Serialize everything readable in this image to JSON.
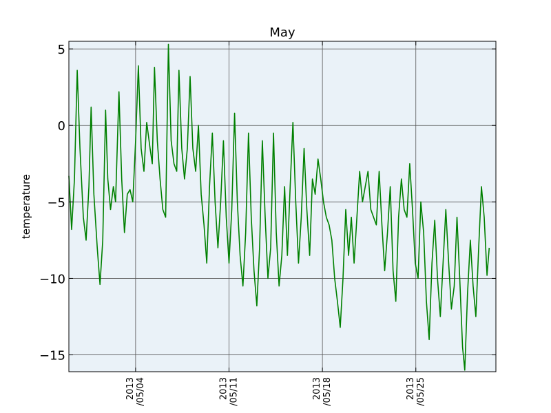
{
  "chart_data": {
    "type": "line",
    "title": "May",
    "xlabel": "",
    "ylabel": "temperature",
    "ylim": [
      -16.1,
      5.5
    ],
    "y_ticks": [
      5,
      0,
      -5,
      -10,
      -15
    ],
    "y_tick_labels": [
      "5",
      "0",
      "−5",
      "−10",
      "−15"
    ],
    "xlim": [
      "2013-04-29",
      "2013-05-31"
    ],
    "x_ticks": [
      "2013-05-04",
      "2013-05-11",
      "2013-05-18",
      "2013-05-25"
    ],
    "x_tick_labels": [
      {
        "year": "2013",
        "month_day": "/05/04"
      },
      {
        "year": "2013",
        "month_day": "/05/11"
      },
      {
        "year": "2013",
        "month_day": "/05/18"
      },
      {
        "year": "2013",
        "month_day": "/05/25"
      }
    ],
    "grid": true,
    "colors": {
      "line": "#008000",
      "plot_background": "#eaf2f8",
      "grid": "#555555"
    },
    "series": [
      {
        "values": [
          {
            "x": "2013-04-29 00:00",
            "y": -3.3
          },
          {
            "x": "2013-04-29 05:00",
            "y": -6.8
          },
          {
            "x": "2013-04-29 10:00",
            "y": -3.5
          },
          {
            "x": "2013-04-29 15:00",
            "y": 3.6
          },
          {
            "x": "2013-04-29 20:00",
            "y": -1.5
          },
          {
            "x": "2013-04-30 02:00",
            "y": -6.0
          },
          {
            "x": "2013-04-30 07:00",
            "y": -7.5
          },
          {
            "x": "2013-04-30 12:00",
            "y": -4.0
          },
          {
            "x": "2013-04-30 16:00",
            "y": 1.2
          },
          {
            "x": "2013-04-30 21:00",
            "y": -4.5
          },
          {
            "x": "2013-05-01 03:00",
            "y": -8.0
          },
          {
            "x": "2013-05-01 08:00",
            "y": -10.4
          },
          {
            "x": "2013-05-01 13:00",
            "y": -7.5
          },
          {
            "x": "2013-05-01 18:00",
            "y": 1.0
          },
          {
            "x": "2013-05-01 22:00",
            "y": -3.5
          },
          {
            "x": "2013-05-02 03:00",
            "y": -5.5
          },
          {
            "x": "2013-05-02 08:00",
            "y": -4.0
          },
          {
            "x": "2013-05-02 12:00",
            "y": -5.0
          },
          {
            "x": "2013-05-02 18:00",
            "y": 2.2
          },
          {
            "x": "2013-05-02 23:00",
            "y": -3.5
          },
          {
            "x": "2013-05-03 04:00",
            "y": -7.0
          },
          {
            "x": "2013-05-03 09:00",
            "y": -4.5
          },
          {
            "x": "2013-05-03 14:00",
            "y": -4.2
          },
          {
            "x": "2013-05-03 19:00",
            "y": -5.0
          },
          {
            "x": "2013-05-04 00:00",
            "y": -1.0
          },
          {
            "x": "2013-05-04 05:00",
            "y": 3.9
          },
          {
            "x": "2013-05-04 10:00",
            "y": -1.5
          },
          {
            "x": "2013-05-04 15:00",
            "y": -3.0
          },
          {
            "x": "2013-05-04 20:00",
            "y": 0.2
          },
          {
            "x": "2013-05-05 02:00",
            "y": -1.5
          },
          {
            "x": "2013-05-05 06:00",
            "y": -2.5
          },
          {
            "x": "2013-05-05 10:00",
            "y": 3.8
          },
          {
            "x": "2013-05-05 15:00",
            "y": -1.0
          },
          {
            "x": "2013-05-05 20:00",
            "y": -3.5
          },
          {
            "x": "2013-05-06 01:00",
            "y": -5.5
          },
          {
            "x": "2013-05-06 06:00",
            "y": -6.0
          },
          {
            "x": "2013-05-06 11:00",
            "y": 5.3
          },
          {
            "x": "2013-05-06 16:00",
            "y": -1.0
          },
          {
            "x": "2013-05-06 21:00",
            "y": -2.5
          },
          {
            "x": "2013-05-07 02:00",
            "y": -3.0
          },
          {
            "x": "2013-05-07 06:00",
            "y": 3.6
          },
          {
            "x": "2013-05-07 11:00",
            "y": -1.5
          },
          {
            "x": "2013-05-07 16:00",
            "y": -3.5
          },
          {
            "x": "2013-05-07 21:00",
            "y": -1.5
          },
          {
            "x": "2013-05-08 02:00",
            "y": 3.2
          },
          {
            "x": "2013-05-08 07:00",
            "y": -1.5
          },
          {
            "x": "2013-05-08 12:00",
            "y": -3.0
          },
          {
            "x": "2013-05-08 17:00",
            "y": 0.0
          },
          {
            "x": "2013-05-08 22:00",
            "y": -4.5
          },
          {
            "x": "2013-05-09 03:00",
            "y": -6.5
          },
          {
            "x": "2013-05-09 08:00",
            "y": -9.0
          },
          {
            "x": "2013-05-09 13:00",
            "y": -4.0
          },
          {
            "x": "2013-05-09 18:00",
            "y": -0.5
          },
          {
            "x": "2013-05-09 23:00",
            "y": -5.0
          },
          {
            "x": "2013-05-10 04:00",
            "y": -8.0
          },
          {
            "x": "2013-05-10 09:00",
            "y": -5.0
          },
          {
            "x": "2013-05-10 14:00",
            "y": -1.0
          },
          {
            "x": "2013-05-10 19:00",
            "y": -6.0
          },
          {
            "x": "2013-05-11 00:00",
            "y": -9.0
          },
          {
            "x": "2013-05-11 05:00",
            "y": -5.5
          },
          {
            "x": "2013-05-11 10:00",
            "y": 0.8
          },
          {
            "x": "2013-05-11 15:00",
            "y": -5.0
          },
          {
            "x": "2013-05-11 20:00",
            "y": -8.5
          },
          {
            "x": "2013-05-12 01:00",
            "y": -10.5
          },
          {
            "x": "2013-05-12 06:00",
            "y": -7.0
          },
          {
            "x": "2013-05-12 11:00",
            "y": -0.5
          },
          {
            "x": "2013-05-12 16:00",
            "y": -6.0
          },
          {
            "x": "2013-05-12 21:00",
            "y": -9.5
          },
          {
            "x": "2013-05-13 02:00",
            "y": -11.8
          },
          {
            "x": "2013-05-13 07:00",
            "y": -8.0
          },
          {
            "x": "2013-05-13 12:00",
            "y": -1.0
          },
          {
            "x": "2013-05-13 17:00",
            "y": -6.0
          },
          {
            "x": "2013-05-13 22:00",
            "y": -10.0
          },
          {
            "x": "2013-05-14 03:00",
            "y": -8.0
          },
          {
            "x": "2013-05-14 08:00",
            "y": -0.5
          },
          {
            "x": "2013-05-14 13:00",
            "y": -7.0
          },
          {
            "x": "2013-05-14 18:00",
            "y": -10.5
          },
          {
            "x": "2013-05-14 23:00",
            "y": -8.5
          },
          {
            "x": "2013-05-15 04:00",
            "y": -4.0
          },
          {
            "x": "2013-05-15 09:00",
            "y": -8.5
          },
          {
            "x": "2013-05-15 14:00",
            "y": -4.0
          },
          {
            "x": "2013-05-15 19:00",
            "y": 0.2
          },
          {
            "x": "2013-05-16 00:00",
            "y": -5.0
          },
          {
            "x": "2013-05-16 05:00",
            "y": -9.0
          },
          {
            "x": "2013-05-16 10:00",
            "y": -6.0
          },
          {
            "x": "2013-05-16 15:00",
            "y": -1.5
          },
          {
            "x": "2013-05-16 20:00",
            "y": -5.5
          },
          {
            "x": "2013-05-17 01:00",
            "y": -8.5
          },
          {
            "x": "2013-05-17 06:00",
            "y": -3.5
          },
          {
            "x": "2013-05-17 11:00",
            "y": -4.5
          },
          {
            "x": "2013-05-17 16:00",
            "y": -2.2
          },
          {
            "x": "2013-05-17 21:00",
            "y": -3.5
          },
          {
            "x": "2013-05-18 02:00",
            "y": -5.0
          },
          {
            "x": "2013-05-18 07:00",
            "y": -6.0
          },
          {
            "x": "2013-05-18 12:00",
            "y": -6.5
          },
          {
            "x": "2013-05-18 17:00",
            "y": -7.5
          },
          {
            "x": "2013-05-18 22:00",
            "y": -10.0
          },
          {
            "x": "2013-05-19 03:00",
            "y": -11.5
          },
          {
            "x": "2013-05-19 08:00",
            "y": -13.2
          },
          {
            "x": "2013-05-19 13:00",
            "y": -10.0
          },
          {
            "x": "2013-05-19 18:00",
            "y": -5.5
          },
          {
            "x": "2013-05-19 23:00",
            "y": -8.5
          },
          {
            "x": "2013-05-20 04:00",
            "y": -6.0
          },
          {
            "x": "2013-05-20 09:00",
            "y": -9.0
          },
          {
            "x": "2013-05-20 14:00",
            "y": -6.0
          },
          {
            "x": "2013-05-20 19:00",
            "y": -3.0
          },
          {
            "x": "2013-05-21 00:00",
            "y": -5.0
          },
          {
            "x": "2013-05-21 05:00",
            "y": -4.0
          },
          {
            "x": "2013-05-21 10:00",
            "y": -3.0
          },
          {
            "x": "2013-05-21 15:00",
            "y": -5.5
          },
          {
            "x": "2013-05-21 20:00",
            "y": -6.0
          },
          {
            "x": "2013-05-22 01:00",
            "y": -6.5
          },
          {
            "x": "2013-05-22 06:00",
            "y": -3.0
          },
          {
            "x": "2013-05-22 11:00",
            "y": -6.5
          },
          {
            "x": "2013-05-22 16:00",
            "y": -9.5
          },
          {
            "x": "2013-05-22 21:00",
            "y": -7.0
          },
          {
            "x": "2013-05-23 02:00",
            "y": -4.0
          },
          {
            "x": "2013-05-23 07:00",
            "y": -9.5
          },
          {
            "x": "2013-05-23 12:00",
            "y": -11.5
          },
          {
            "x": "2013-05-23 17:00",
            "y": -6.0
          },
          {
            "x": "2013-05-23 22:00",
            "y": -3.5
          },
          {
            "x": "2013-05-24 03:00",
            "y": -5.5
          },
          {
            "x": "2013-05-24 08:00",
            "y": -6.0
          },
          {
            "x": "2013-05-24 13:00",
            "y": -2.5
          },
          {
            "x": "2013-05-24 18:00",
            "y": -5.5
          },
          {
            "x": "2013-05-24 23:00",
            "y": -9.0
          },
          {
            "x": "2013-05-25 04:00",
            "y": -10.0
          },
          {
            "x": "2013-05-25 09:00",
            "y": -5.0
          },
          {
            "x": "2013-05-25 14:00",
            "y": -7.0
          },
          {
            "x": "2013-05-25 19:00",
            "y": -11.5
          },
          {
            "x": "2013-05-26 00:00",
            "y": -14.0
          },
          {
            "x": "2013-05-26 05:00",
            "y": -9.0
          },
          {
            "x": "2013-05-26 10:00",
            "y": -6.2
          },
          {
            "x": "2013-05-26 15:00",
            "y": -10.0
          },
          {
            "x": "2013-05-26 20:00",
            "y": -12.5
          },
          {
            "x": "2013-05-27 01:00",
            "y": -9.0
          },
          {
            "x": "2013-05-27 06:00",
            "y": -5.5
          },
          {
            "x": "2013-05-27 11:00",
            "y": -9.0
          },
          {
            "x": "2013-05-27 16:00",
            "y": -12.0
          },
          {
            "x": "2013-05-27 21:00",
            "y": -10.5
          },
          {
            "x": "2013-05-28 02:00",
            "y": -6.0
          },
          {
            "x": "2013-05-28 07:00",
            "y": -10.0
          },
          {
            "x": "2013-05-28 12:00",
            "y": -14.5
          },
          {
            "x": "2013-05-28 16:00",
            "y": -16.0
          },
          {
            "x": "2013-05-28 21:00",
            "y": -11.0
          },
          {
            "x": "2013-05-29 02:00",
            "y": -7.5
          },
          {
            "x": "2013-05-29 07:00",
            "y": -10.5
          },
          {
            "x": "2013-05-29 12:00",
            "y": -12.5
          },
          {
            "x": "2013-05-29 17:00",
            "y": -8.0
          },
          {
            "x": "2013-05-29 22:00",
            "y": -4.0
          },
          {
            "x": "2013-05-30 03:00",
            "y": -6.0
          },
          {
            "x": "2013-05-30 08:00",
            "y": -9.8
          },
          {
            "x": "2013-05-30 12:00",
            "y": -8.0
          }
        ]
      }
    ]
  }
}
